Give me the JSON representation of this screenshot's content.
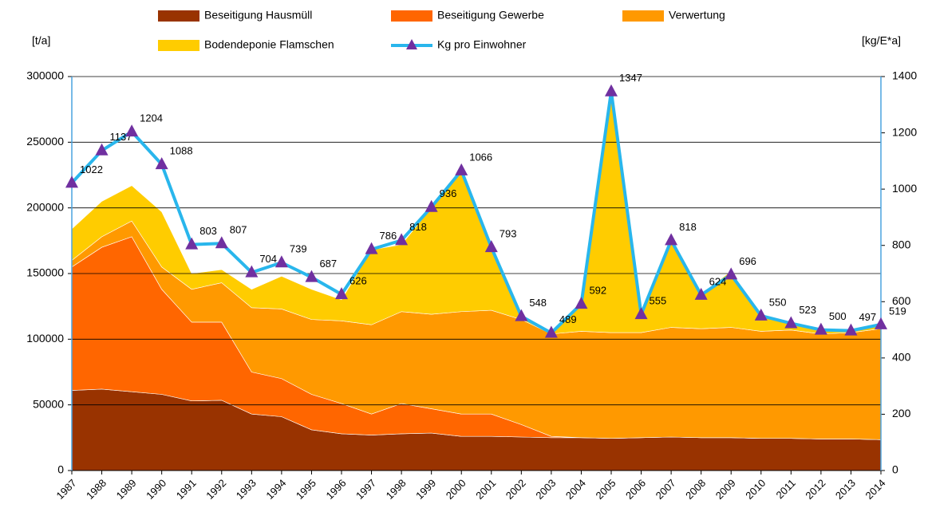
{
  "chart_data": {
    "type": "area",
    "ylabel": "[t/a]",
    "y2label": "[kg/E*a]",
    "categories": [
      "1987",
      "1988",
      "1989",
      "1990",
      "1991",
      "1992",
      "1993",
      "1994",
      "1995",
      "1996",
      "1997",
      "1998",
      "1999",
      "2000",
      "2001",
      "2002",
      "2003",
      "2004",
      "2005",
      "2006",
      "2007",
      "2008",
      "2009",
      "2010",
      "2011",
      "2012",
      "2013",
      "2014"
    ],
    "series": [
      {
        "name": "Beseitigung Hausmüll",
        "color": "#993300",
        "values": [
          61000,
          62000,
          60000,
          58000,
          53000,
          53500,
          43000,
          41000,
          31000,
          28000,
          27000,
          28000,
          28500,
          26000,
          26000,
          25500,
          25000,
          25000,
          24500,
          25000,
          25500,
          25000,
          25000,
          24500,
          24500,
          24000,
          24000,
          23500
        ]
      },
      {
        "name": "Beseitigung Gewerbe",
        "color": "#ff6600",
        "values": [
          94000,
          108000,
          118000,
          80000,
          60000,
          59500,
          32000,
          29000,
          27000,
          23000,
          16000,
          23000,
          18500,
          17000,
          17000,
          9500,
          1000,
          0,
          0,
          0,
          0,
          0,
          0,
          0,
          0,
          0,
          0,
          0
        ]
      },
      {
        "name": "Verwertung",
        "color": "#ff9900",
        "values": [
          5000,
          8000,
          12000,
          17000,
          25000,
          30000,
          49000,
          53000,
          57000,
          63000,
          68000,
          70000,
          72000,
          78000,
          79000,
          80000,
          78000,
          81000,
          80500,
          80000,
          83500,
          83000,
          84000,
          81500,
          82500,
          80000,
          81000,
          84500
        ]
      },
      {
        "name": "Bodendeponie Flamschen",
        "color": "#ffcc00",
        "values": [
          24000,
          27000,
          27000,
          42000,
          12000,
          10000,
          14000,
          25000,
          23000,
          16000,
          57000,
          51000,
          81000,
          107000,
          48000,
          2000,
          1000,
          21000,
          184000,
          14000,
          66000,
          26000,
          43000,
          12000,
          5000,
          4000,
          2000,
          3000
        ]
      },
      {
        "name": "Kg pro Einwohner",
        "type": "line",
        "axis": "y2",
        "color": "#29b6ec",
        "marker_color": "#7030a0",
        "values": [
          1022,
          1137,
          1204,
          1088,
          803,
          807,
          704,
          739,
          687,
          626,
          786,
          818,
          936,
          1066,
          793,
          548,
          489,
          592,
          1347,
          555,
          818,
          624,
          696,
          550,
          523,
          500,
          497,
          519
        ]
      }
    ],
    "ylim": [
      0,
      300000
    ],
    "yticks": [
      0,
      50000,
      100000,
      150000,
      200000,
      250000,
      300000
    ],
    "y2lim": [
      0,
      1400
    ],
    "y2ticks": [
      0,
      200,
      400,
      600,
      800,
      1000,
      1200,
      1400
    ],
    "grid": true,
    "legend": "top"
  }
}
